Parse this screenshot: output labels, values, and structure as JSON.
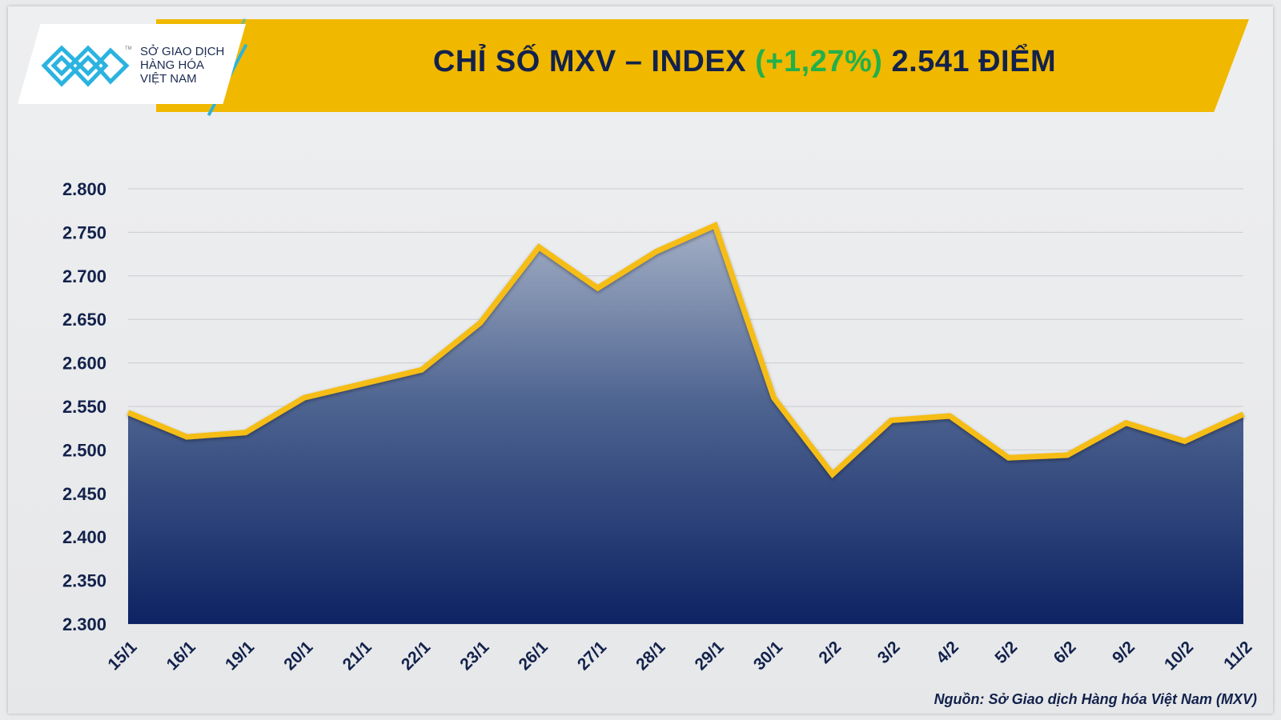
{
  "header": {
    "logo_lines": [
      "SỞ GIAO DỊCH",
      "HÀNG HÓA",
      "VIỆT NAM"
    ],
    "logo_tm": "TM",
    "title_prefix": "CHỈ SỐ MXV – INDEX",
    "title_change": "(+1,27%)",
    "title_value": "2.541 ĐIỂM"
  },
  "colors": {
    "banner": "#f1b800",
    "line": "#f5bd12",
    "area_top": "#a3afc5",
    "area_bottom": "#0d2363",
    "change": "#22b04a",
    "text": "#13224c"
  },
  "chart_data": {
    "type": "area",
    "title": "CHỈ SỐ MXV – INDEX (+1,27%) 2.541 ĐIỂM",
    "categories": [
      "15/1",
      "16/1",
      "19/1",
      "20/1",
      "21/1",
      "22/1",
      "23/1",
      "26/1",
      "27/1",
      "28/1",
      "29/1",
      "30/1",
      "2/2",
      "3/2",
      "4/2",
      "5/2",
      "6/2",
      "9/2",
      "10/2",
      "11/2"
    ],
    "values": [
      2543,
      2515,
      2520,
      2560,
      2576,
      2592,
      2646,
      2733,
      2686,
      2728,
      2758,
      2560,
      2472,
      2534,
      2539,
      2491,
      2494,
      2531,
      2510,
      2541
    ],
    "ylim": [
      2300,
      2800
    ],
    "yticks": [
      2800,
      2750,
      2700,
      2650,
      2600,
      2550,
      2500,
      2450,
      2400,
      2350,
      2300
    ],
    "ytick_labels": [
      "2.800",
      "2.750",
      "2.700",
      "2.650",
      "2.600",
      "2.550",
      "2.500",
      "2.450",
      "2.400",
      "2.350",
      "2.300"
    ],
    "grid": true,
    "xlabel": "",
    "ylabel": ""
  },
  "source": "Nguồn: Sở Giao dịch Hàng hóa Việt Nam (MXV)"
}
